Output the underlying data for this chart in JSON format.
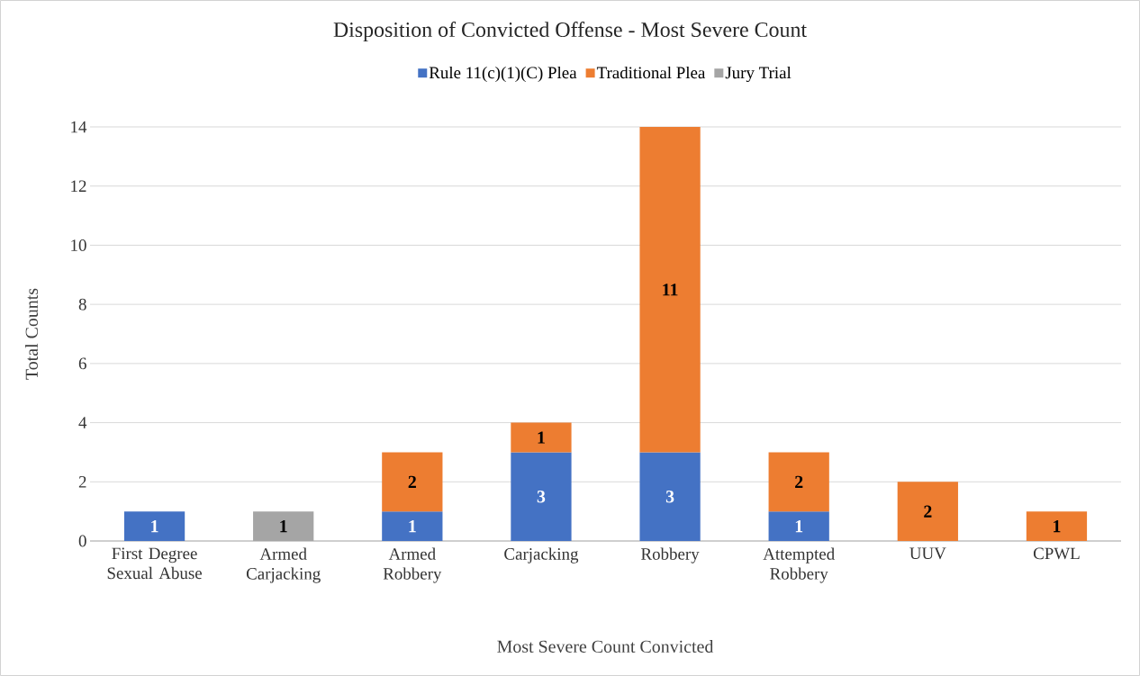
{
  "chart_data": {
    "type": "bar",
    "stacked": true,
    "title": "Disposition of Convicted Offense - Most Severe Count",
    "xlabel": "Most Severe Count Convicted",
    "ylabel": "Total Counts",
    "categories": [
      "First Degree Sexual Abuse",
      "Armed Carjacking",
      "Armed Robbery",
      "Carjacking",
      "Robbery",
      "Attempted Robbery",
      "UUV",
      "CPWL"
    ],
    "series": [
      {
        "name": "Rule 11(c)(1)(C) Plea",
        "color": "#4472c4",
        "values": [
          1,
          null,
          1,
          3,
          3,
          1,
          null,
          null
        ]
      },
      {
        "name": "Traditional Plea",
        "color": "#ed7d31",
        "values": [
          null,
          null,
          2,
          1,
          11,
          2,
          2,
          1
        ]
      },
      {
        "name": "Jury Trial",
        "color": "#a5a5a5",
        "values": [
          null,
          1,
          null,
          null,
          null,
          null,
          null,
          null
        ]
      }
    ],
    "ylim": [
      0,
      14
    ],
    "yticks": [
      0,
      2,
      4,
      6,
      8,
      10,
      12,
      14
    ],
    "grid": "y",
    "legend": "top",
    "data_labels": true
  }
}
